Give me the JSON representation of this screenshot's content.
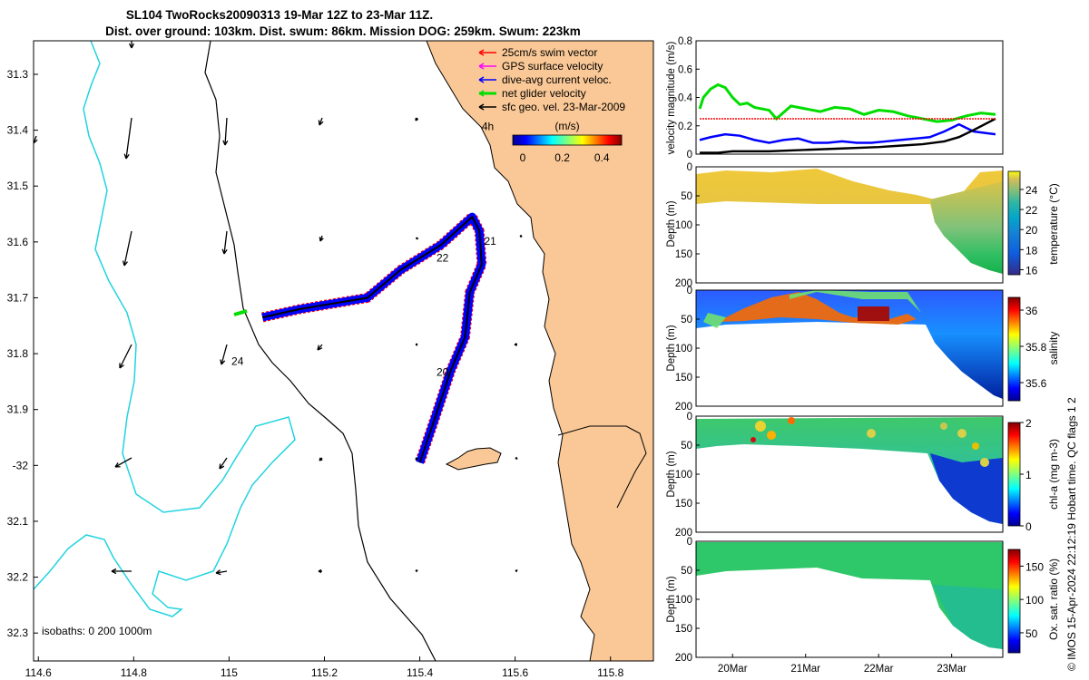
{
  "title": {
    "line1": "SL104 TwoRocks20090313 19-Mar 12Z to 23-Mar 11Z.",
    "line2": "Dist. over ground: 103km. Dist. swum: 86km. Mission DOG: 259km. Swum: 223km"
  },
  "colors": {
    "land": "#fac896",
    "isobath_0": "#000000",
    "isobath_200": "#000000",
    "isobath_1000": "#22d3e0",
    "swim_vector": "#ff0000",
    "gps_velocity": "#ff00ff",
    "current": "#0000ff",
    "net": "#00dd00",
    "sfc_geo": "#000000"
  },
  "map": {
    "xaxis": {
      "range": [
        114.59,
        115.89
      ],
      "ticks": [
        "114.6",
        "114.8",
        "115",
        "115.2",
        "115.4",
        "115.6",
        "115.8"
      ],
      "tick_values": [
        114.6,
        114.8,
        115.0,
        115.2,
        115.4,
        115.6,
        115.8
      ]
    },
    "yaxis": {
      "range": [
        -32.35,
        -31.24
      ],
      "ticks": [
        "31.3",
        "31.4",
        "31.5",
        "31.6",
        "31.7",
        "31.8",
        "31.9",
        "-32",
        "32.1",
        "32.2",
        "32.3"
      ],
      "tick_values": [
        -31.3,
        -31.4,
        -31.5,
        -31.6,
        -31.7,
        -31.8,
        -31.9,
        -32.0,
        -32.1,
        -32.2,
        -32.3
      ]
    },
    "legend": {
      "items": [
        {
          "label": "25cm/s swim vector",
          "color": "#ff0000"
        },
        {
          "label": "GPS surface velocity",
          "color": "#ff00ff"
        },
        {
          "label": "dive-avg current veloc.",
          "color": "#0000ff"
        },
        {
          "label": "net glider velocity",
          "color": "#00dd00"
        },
        {
          "label": "sfc geo. vel. 23-Mar-2009",
          "color": "#000000"
        }
      ],
      "colorbar_unit": "(m/s)",
      "colorbar_ticks": [
        "0",
        "0.2",
        "0.4"
      ],
      "colorbar_tick_values": [
        0,
        0.2,
        0.4
      ],
      "colorbar_range": [
        -0.05,
        0.5
      ]
    },
    "annotations": [
      {
        "text": "4h",
        "lon": 115.53,
        "lat": -31.4
      },
      {
        "text": "21",
        "lon": 115.535,
        "lat": -31.605
      },
      {
        "text": "22",
        "lon": 115.435,
        "lat": -31.635
      },
      {
        "text": "20",
        "lon": 115.435,
        "lat": -31.84
      },
      {
        "text": "24",
        "lon": 115.005,
        "lat": -31.82
      }
    ],
    "isobath_label": "isobaths: 0   200  1000m",
    "track_waypoints": [
      {
        "lon": 115.07,
        "lat": -31.735
      },
      {
        "lon": 115.15,
        "lat": -31.72
      },
      {
        "lon": 115.29,
        "lat": -31.7
      },
      {
        "lon": 115.36,
        "lat": -31.65
      },
      {
        "lon": 115.445,
        "lat": -31.605
      },
      {
        "lon": 115.51,
        "lat": -31.555
      },
      {
        "lon": 115.525,
        "lat": -31.58
      },
      {
        "lon": 115.53,
        "lat": -31.64
      },
      {
        "lon": 115.505,
        "lat": -31.69
      },
      {
        "lon": 115.495,
        "lat": -31.77
      },
      {
        "lon": 115.465,
        "lat": -31.83
      },
      {
        "lon": 115.43,
        "lat": -31.92
      },
      {
        "lon": 115.4,
        "lat": -31.995
      }
    ]
  },
  "chart_data": [
    {
      "type": "line",
      "title": "",
      "xlabel": "",
      "ylabel": "velocity magnitude (m/s)",
      "ylim": [
        0,
        0.8
      ],
      "yticks": [
        "0",
        "0.2",
        "0.4",
        "0.6",
        "0.8"
      ],
      "ytick_values": [
        0,
        0.2,
        0.4,
        0.6,
        0.8
      ],
      "xlim": [
        19.5,
        23.7
      ],
      "series": [
        {
          "name": "net glider velocity",
          "color": "#00dd00",
          "x": [
            19.55,
            19.6,
            19.7,
            19.8,
            19.9,
            20.0,
            20.1,
            20.2,
            20.3,
            20.5,
            20.6,
            20.8,
            21.0,
            21.2,
            21.4,
            21.6,
            21.8,
            22.0,
            22.2,
            22.4,
            22.6,
            22.8,
            23.0,
            23.2,
            23.4,
            23.6
          ],
          "values": [
            0.32,
            0.4,
            0.46,
            0.49,
            0.47,
            0.4,
            0.35,
            0.36,
            0.33,
            0.31,
            0.25,
            0.34,
            0.32,
            0.3,
            0.33,
            0.32,
            0.28,
            0.31,
            0.3,
            0.27,
            0.25,
            0.23,
            0.24,
            0.27,
            0.29,
            0.28
          ]
        },
        {
          "name": "dive-avg current veloc.",
          "color": "#0000ff",
          "x": [
            19.55,
            19.7,
            19.9,
            20.1,
            20.3,
            20.5,
            20.7,
            20.9,
            21.1,
            21.3,
            21.5,
            21.7,
            21.9,
            22.1,
            22.3,
            22.5,
            22.7,
            22.9,
            23.1,
            23.3,
            23.6
          ],
          "values": [
            0.1,
            0.12,
            0.14,
            0.13,
            0.1,
            0.08,
            0.1,
            0.11,
            0.08,
            0.08,
            0.09,
            0.08,
            0.08,
            0.09,
            0.1,
            0.11,
            0.12,
            0.16,
            0.21,
            0.16,
            0.14
          ]
        },
        {
          "name": "sfc geo. vel. 23-Mar-2009",
          "color": "#000000",
          "x": [
            19.55,
            19.8,
            20.0,
            20.5,
            21.0,
            21.5,
            22.0,
            22.3,
            22.6,
            22.9,
            23.1,
            23.3,
            23.6
          ],
          "values": [
            0.01,
            0.01,
            0.02,
            0.02,
            0.03,
            0.04,
            0.05,
            0.06,
            0.07,
            0.09,
            0.12,
            0.17,
            0.25
          ]
        },
        {
          "name": "25cm/s swim vector",
          "color": "#ff0000",
          "x": [
            19.55,
            23.6
          ],
          "values": [
            0.25,
            0.25
          ]
        }
      ]
    },
    {
      "type": "heatmap",
      "ylabel": "Depth (m)",
      "ylim": [
        200,
        0
      ],
      "yticks": [
        "0",
        "50",
        "100",
        "150",
        "200"
      ],
      "colorbar_label": "temperature (°C)",
      "colorbar_ticks": [
        "16",
        "18",
        "20",
        "22",
        "24"
      ],
      "colorbar_range": [
        15.5,
        25.8
      ],
      "colormap": "parula"
    },
    {
      "type": "heatmap",
      "ylabel": "Depth (m)",
      "ylim": [
        200,
        0
      ],
      "yticks": [
        "0",
        "50",
        "100",
        "150",
        "200"
      ],
      "colorbar_label": "salinity",
      "colorbar_ticks": [
        "35.6",
        "35.8",
        "36"
      ],
      "colorbar_range": [
        35.5,
        36.07
      ],
      "colormap": "jet"
    },
    {
      "type": "heatmap",
      "ylabel": "Depth (m)",
      "ylim": [
        200,
        0
      ],
      "yticks": [
        "0",
        "50",
        "100",
        "150",
        "200"
      ],
      "colorbar_label": "chl-a (mg m-3)",
      "colorbar_ticks": [
        "0",
        "1",
        "2"
      ],
      "colorbar_range": [
        0,
        2
      ],
      "colormap": "jet"
    },
    {
      "type": "heatmap",
      "ylabel": "Depth (m)",
      "ylim": [
        200,
        0
      ],
      "yticks": [
        "0",
        "50",
        "100",
        "150",
        "200"
      ],
      "colorbar_label": "Ox. sat. ratio (%)",
      "colorbar_ticks": [
        "50",
        "100",
        "150"
      ],
      "colorbar_range": [
        20,
        175
      ],
      "colormap": "jet",
      "xticks": [
        "20Mar",
        "21Mar",
        "22Mar",
        "23Mar"
      ],
      "xtick_values": [
        20,
        21,
        22,
        23
      ]
    }
  ],
  "side_text": "© IMOS 15-Apr-2024 22:12:19 Hobart time. QC flags 1  2"
}
